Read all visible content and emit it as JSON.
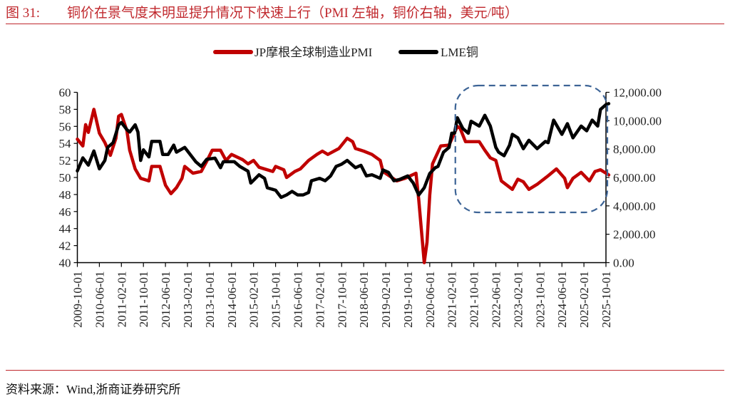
{
  "title": {
    "figure_no": "图 31:",
    "text": "铜价在景气度未明显提升情况下快速上行（PMI 左轴，铜价右轴，美元/吨）"
  },
  "source": "资料来源：Wind,浙商证券研究所",
  "chart_data": {
    "type": "line",
    "title": "铜价在景气度未明显提升情况下快速上行（PMI 左轴，铜价右轴，美元/吨）",
    "legend_position": "top",
    "grid": false,
    "colors": {
      "pmi": "#c00000",
      "copper": "#000000",
      "highlight_box": "#3d6496"
    },
    "x_ticks": [
      "2009-10-01",
      "2010-06-01",
      "2011-02-01",
      "2011-10-01",
      "2012-06-01",
      "2013-02-01",
      "2013-10-01",
      "2014-06-01",
      "2015-02-01",
      "2015-10-01",
      "2016-06-01",
      "2017-02-01",
      "2017-10-01",
      "2018-06-01",
      "2019-02-01",
      "2019-10-01",
      "2020-06-01",
      "2021-02-01",
      "2021-10-01",
      "2022-06-01",
      "2023-02-01",
      "2023-10-01",
      "2024-06-01",
      "2025-02-01",
      "2025-10-01"
    ],
    "y_left": {
      "lim": [
        40,
        60
      ],
      "ticks": [
        "40",
        "42",
        "44",
        "46",
        "48",
        "50",
        "52",
        "54",
        "56",
        "58",
        "60"
      ]
    },
    "y_right": {
      "lim": [
        0,
        12000
      ],
      "ticks": [
        "0.00",
        "2,000.00",
        "4,000.00",
        "6,000.00",
        "8,000.00",
        "10,000.00",
        "12,000.00"
      ]
    },
    "highlight_box": {
      "x_range": [
        "2021-02",
        "2025-11"
      ],
      "style": "dashed rounded rectangle"
    },
    "series": [
      {
        "name": "JP摩根全球制造业PMI",
        "axis": "left",
        "color": "#c00000",
        "points": [
          [
            "2009-10",
            54.5
          ],
          [
            "2009-12",
            53.7
          ],
          [
            "2010-01",
            56.2
          ],
          [
            "2010-02",
            55.3
          ],
          [
            "2010-04",
            58.0
          ],
          [
            "2010-06",
            55.2
          ],
          [
            "2010-08",
            54.1
          ],
          [
            "2010-10",
            52.6
          ],
          [
            "2010-12",
            54.6
          ],
          [
            "2011-01",
            57.2
          ],
          [
            "2011-02",
            57.4
          ],
          [
            "2011-04",
            55.5
          ],
          [
            "2011-05",
            53.2
          ],
          [
            "2011-07",
            51.0
          ],
          [
            "2011-09",
            49.9
          ],
          [
            "2011-12",
            49.6
          ],
          [
            "2012-01",
            51.3
          ],
          [
            "2012-04",
            51.3
          ],
          [
            "2012-06",
            49.1
          ],
          [
            "2012-08",
            48.1
          ],
          [
            "2012-10",
            48.8
          ],
          [
            "2012-12",
            49.9
          ],
          [
            "2013-01",
            51.3
          ],
          [
            "2013-04",
            50.5
          ],
          [
            "2013-07",
            50.7
          ],
          [
            "2013-09",
            51.9
          ],
          [
            "2013-11",
            53.2
          ],
          [
            "2014-02",
            53.2
          ],
          [
            "2014-04",
            52.0
          ],
          [
            "2014-06",
            52.7
          ],
          [
            "2014-10",
            52.1
          ],
          [
            "2014-12",
            51.6
          ],
          [
            "2015-02",
            52.0
          ],
          [
            "2015-04",
            51.2
          ],
          [
            "2015-09",
            50.7
          ],
          [
            "2015-10",
            51.3
          ],
          [
            "2016-01",
            50.9
          ],
          [
            "2016-02",
            50.0
          ],
          [
            "2016-05",
            50.7
          ],
          [
            "2016-07",
            51.0
          ],
          [
            "2016-10",
            52.0
          ],
          [
            "2017-01",
            52.7
          ],
          [
            "2017-03",
            53.1
          ],
          [
            "2017-05",
            52.7
          ],
          [
            "2017-09",
            53.4
          ],
          [
            "2017-12",
            54.6
          ],
          [
            "2018-02",
            54.2
          ],
          [
            "2018-03",
            53.4
          ],
          [
            "2018-06",
            53.1
          ],
          [
            "2018-09",
            52.7
          ],
          [
            "2018-12",
            52.0
          ],
          [
            "2019-01",
            50.7
          ],
          [
            "2019-06",
            49.6
          ],
          [
            "2019-09",
            49.9
          ],
          [
            "2020-01",
            50.5
          ],
          [
            "2020-02",
            47.4
          ],
          [
            "2020-04",
            40.0
          ],
          [
            "2020-05",
            42.4
          ],
          [
            "2020-06",
            47.9
          ],
          [
            "2020-07",
            51.6
          ],
          [
            "2020-10",
            53.7
          ],
          [
            "2021-01",
            53.8
          ],
          [
            "2021-04",
            56.0
          ],
          [
            "2021-05",
            55.8
          ],
          [
            "2021-07",
            54.2
          ],
          [
            "2021-12",
            54.2
          ],
          [
            "2022-02",
            53.2
          ],
          [
            "2022-04",
            52.3
          ],
          [
            "2022-06",
            52.0
          ],
          [
            "2022-08",
            49.6
          ],
          [
            "2022-12",
            48.6
          ],
          [
            "2023-02",
            49.8
          ],
          [
            "2023-04",
            49.5
          ],
          [
            "2023-06",
            48.6
          ],
          [
            "2023-09",
            49.2
          ],
          [
            "2024-01",
            50.2
          ],
          [
            "2024-04",
            51.0
          ],
          [
            "2024-07",
            49.9
          ],
          [
            "2024-08",
            48.8
          ],
          [
            "2024-10",
            49.9
          ],
          [
            "2025-01",
            50.6
          ],
          [
            "2025-04",
            49.6
          ],
          [
            "2025-06",
            50.7
          ],
          [
            "2025-08",
            50.9
          ],
          [
            "2025-11",
            50.3
          ]
        ]
      },
      {
        "name": "LME铜",
        "axis": "right",
        "color": "#000000",
        "points": [
          [
            "2009-10",
            6460
          ],
          [
            "2009-12",
            7380
          ],
          [
            "2010-02",
            6870
          ],
          [
            "2010-04",
            7870
          ],
          [
            "2010-06",
            6610
          ],
          [
            "2010-08",
            7200
          ],
          [
            "2010-09",
            8120
          ],
          [
            "2010-11",
            8450
          ],
          [
            "2011-01",
            9710
          ],
          [
            "2011-02",
            9870
          ],
          [
            "2011-04",
            9370
          ],
          [
            "2011-05",
            9200
          ],
          [
            "2011-07",
            9710
          ],
          [
            "2011-08",
            9200
          ],
          [
            "2011-09",
            7200
          ],
          [
            "2011-10",
            7950
          ],
          [
            "2011-12",
            7450
          ],
          [
            "2012-01",
            8540
          ],
          [
            "2012-04",
            8540
          ],
          [
            "2012-05",
            7620
          ],
          [
            "2012-07",
            7620
          ],
          [
            "2012-09",
            8280
          ],
          [
            "2012-10",
            7780
          ],
          [
            "2013-01",
            8120
          ],
          [
            "2013-03",
            7620
          ],
          [
            "2013-05",
            7110
          ],
          [
            "2013-07",
            6780
          ],
          [
            "2013-09",
            7280
          ],
          [
            "2013-12",
            7360
          ],
          [
            "2014-02",
            6690
          ],
          [
            "2014-03",
            7110
          ],
          [
            "2014-07",
            7110
          ],
          [
            "2014-09",
            6780
          ],
          [
            "2014-12",
            6440
          ],
          [
            "2015-01",
            5610
          ],
          [
            "2015-04",
            6190
          ],
          [
            "2015-06",
            5940
          ],
          [
            "2015-07",
            5270
          ],
          [
            "2015-10",
            5100
          ],
          [
            "2015-12",
            4600
          ],
          [
            "2016-02",
            4770
          ],
          [
            "2016-04",
            5020
          ],
          [
            "2016-06",
            4770
          ],
          [
            "2016-08",
            4770
          ],
          [
            "2016-10",
            4940
          ],
          [
            "2016-11",
            5770
          ],
          [
            "2017-02",
            5940
          ],
          [
            "2017-04",
            5770
          ],
          [
            "2017-06",
            6110
          ],
          [
            "2017-08",
            6780
          ],
          [
            "2017-10",
            6940
          ],
          [
            "2017-12",
            7200
          ],
          [
            "2018-03",
            6690
          ],
          [
            "2018-05",
            6860
          ],
          [
            "2018-07",
            6110
          ],
          [
            "2018-09",
            6190
          ],
          [
            "2018-12",
            5940
          ],
          [
            "2019-01",
            6530
          ],
          [
            "2019-03",
            6360
          ],
          [
            "2019-05",
            5770
          ],
          [
            "2019-07",
            5860
          ],
          [
            "2019-10",
            6110
          ],
          [
            "2019-12",
            5610
          ],
          [
            "2020-02",
            4770
          ],
          [
            "2020-04",
            5270
          ],
          [
            "2020-06",
            6280
          ],
          [
            "2020-08",
            6690
          ],
          [
            "2020-09",
            6780
          ],
          [
            "2020-11",
            7780
          ],
          [
            "2021-01",
            8120
          ],
          [
            "2021-02",
            9120
          ],
          [
            "2021-03",
            9120
          ],
          [
            "2021-04",
            10210
          ],
          [
            "2021-06",
            9450
          ],
          [
            "2021-08",
            9120
          ],
          [
            "2021-09",
            9960
          ],
          [
            "2021-12",
            9620
          ],
          [
            "2022-02",
            10380
          ],
          [
            "2022-04",
            9620
          ],
          [
            "2022-06",
            8120
          ],
          [
            "2022-07",
            7780
          ],
          [
            "2022-09",
            7530
          ],
          [
            "2022-11",
            8280
          ],
          [
            "2022-12",
            9040
          ],
          [
            "2023-02",
            8790
          ],
          [
            "2023-04",
            8030
          ],
          [
            "2023-06",
            8620
          ],
          [
            "2023-09",
            8030
          ],
          [
            "2023-12",
            8540
          ],
          [
            "2024-01",
            8450
          ],
          [
            "2024-03",
            10040
          ],
          [
            "2024-06",
            9040
          ],
          [
            "2024-08",
            9790
          ],
          [
            "2024-10",
            8790
          ],
          [
            "2025-01",
            9620
          ],
          [
            "2025-03",
            9290
          ],
          [
            "2025-05",
            10040
          ],
          [
            "2025-07",
            9620
          ],
          [
            "2025-08",
            10790
          ],
          [
            "2025-10",
            11130
          ],
          [
            "2025-11",
            11200
          ]
        ]
      }
    ]
  }
}
